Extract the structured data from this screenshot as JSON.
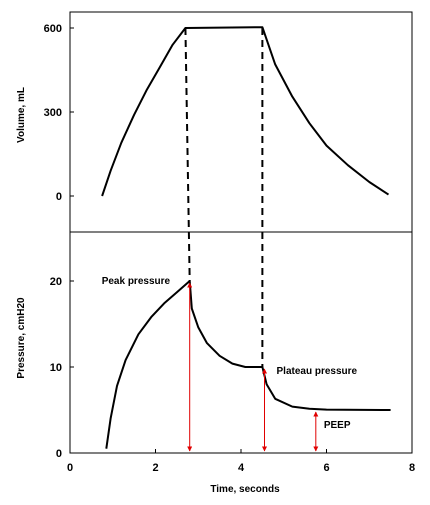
{
  "chart_data": [
    {
      "type": "line",
      "ylabel": "Volume, mL",
      "xlim": [
        0,
        8
      ],
      "ylim": [
        0,
        600
      ],
      "yticks": [
        0,
        300,
        600
      ],
      "series": [
        {
          "name": "volume",
          "x": [
            0.75,
            0.95,
            1.2,
            1.5,
            1.8,
            2.1,
            2.4,
            2.7,
            4.5,
            4.8,
            5.2,
            5.6,
            6.0,
            6.5,
            7.0,
            7.45
          ],
          "y": [
            0,
            90,
            190,
            290,
            380,
            460,
            540,
            600,
            603,
            470,
            355,
            260,
            180,
            110,
            50,
            5
          ]
        }
      ],
      "dashed_links": [
        {
          "x_top": 2.7,
          "x_bottom": 2.8
        },
        {
          "x_top": 4.5,
          "x_bottom": 4.5
        }
      ]
    },
    {
      "type": "line",
      "ylabel": "Pressure, cmH20",
      "xlabel": "Time, seconds",
      "xlim": [
        0,
        8
      ],
      "ylim": [
        0,
        20
      ],
      "xticks": [
        0,
        2,
        4,
        6,
        8
      ],
      "yticks": [
        0,
        10,
        20
      ],
      "series": [
        {
          "name": "pressure",
          "x": [
            0.85,
            0.95,
            1.1,
            1.3,
            1.6,
            1.9,
            2.2,
            2.5,
            2.8,
            2.85,
            3.0,
            3.2,
            3.5,
            3.8,
            4.1,
            4.5,
            4.6,
            4.8,
            5.2,
            5.6,
            6.0,
            7.5
          ],
          "y": [
            0.5,
            4,
            7.8,
            10.8,
            13.8,
            15.8,
            17.4,
            18.7,
            20,
            16.8,
            14.6,
            12.8,
            11.3,
            10.4,
            10.0,
            10.0,
            8.0,
            6.3,
            5.4,
            5.15,
            5.05,
            5.0
          ]
        }
      ],
      "annotations": [
        {
          "label": "Peak pressure",
          "x": 2.8,
          "from": 0,
          "to": 20
        },
        {
          "label": "Plateau pressure",
          "x": 4.55,
          "from": 0,
          "to": 10
        },
        {
          "label": "PEEP",
          "x": 5.75,
          "from": 0,
          "to": 5
        }
      ]
    }
  ]
}
